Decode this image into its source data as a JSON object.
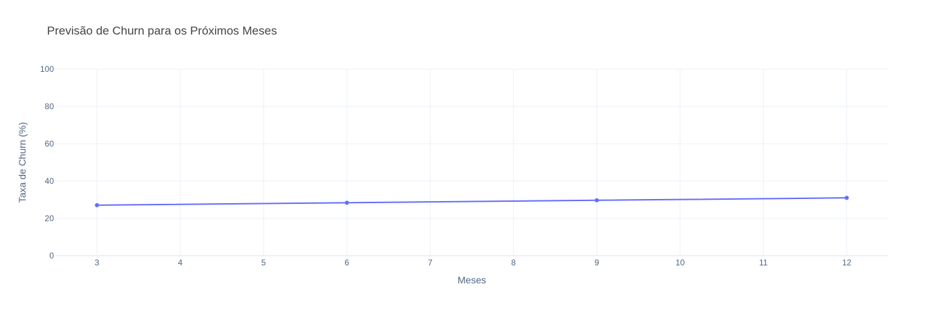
{
  "chart_data": {
    "type": "line",
    "title": "Previsão de Churn para os Próximos Meses",
    "xlabel": "Meses",
    "ylabel": "Taxa de Churn (%)",
    "xlim": [
      2.5,
      12.5
    ],
    "ylim": [
      0,
      100
    ],
    "x_ticks": [
      3,
      4,
      5,
      6,
      7,
      8,
      9,
      10,
      11,
      12
    ],
    "y_ticks": [
      0,
      20,
      40,
      60,
      80,
      100
    ],
    "grid": true,
    "x": [
      3,
      6,
      9,
      12
    ],
    "series": [
      {
        "values": [
          27.1,
          28.4,
          29.7,
          31.0
        ],
        "color": "#636efa",
        "markers": true
      }
    ]
  }
}
